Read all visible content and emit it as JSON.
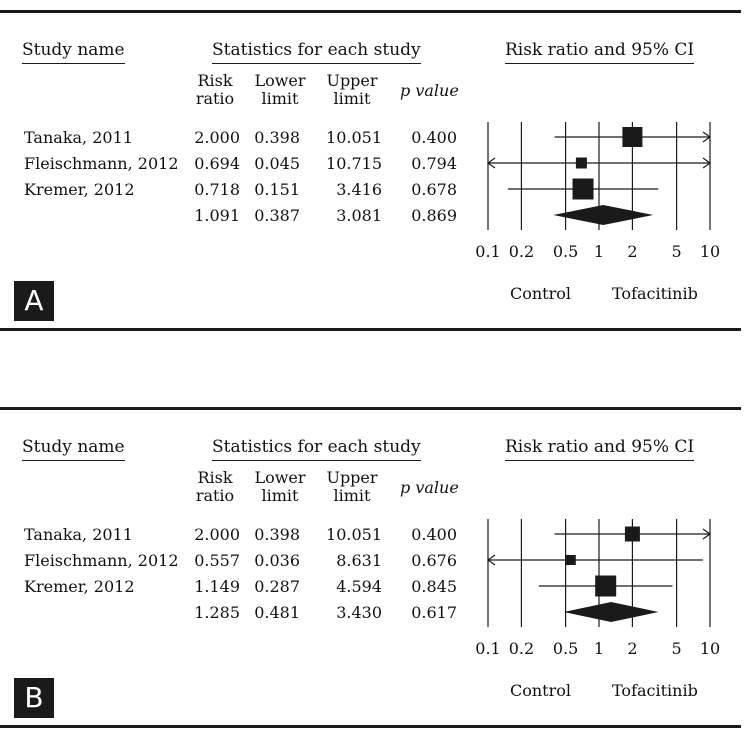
{
  "chart_data": [
    {
      "type": "forest",
      "panel_label": "A",
      "headers": {
        "study": "Study name",
        "statistics": "Statistics for each study",
        "plot": "Risk ratio and 95% CI",
        "col_risk_1": "Risk",
        "col_risk_2": "ratio",
        "col_lower_1": "Lower",
        "col_lower_2": "limit",
        "col_upper_1": "Upper",
        "col_upper_2": "limit",
        "col_p": "p value"
      },
      "rows": [
        {
          "study": "Tanaka, 2011",
          "rr": 2.0,
          "lower": 0.398,
          "upper": 10.051,
          "p": 0.4,
          "rr_text": "2.000",
          "lower_text": "0.398",
          "upper_text": "10.051",
          "p_text": "0.400",
          "weight": 1.0
        },
        {
          "study": "Fleischmann, 2012",
          "rr": 0.694,
          "lower": 0.045,
          "upper": 10.715,
          "p": 0.794,
          "rr_text": "0.694",
          "lower_text": "0.045",
          "upper_text": "10.715",
          "p_text": "0.794",
          "weight": 0.55
        },
        {
          "study": "Kremer, 2012",
          "rr": 0.718,
          "lower": 0.151,
          "upper": 3.416,
          "p": 0.678,
          "rr_text": "0.718",
          "lower_text": "0.151",
          "upper_text": "3.416",
          "p_text": "0.678",
          "weight": 1.05
        }
      ],
      "summary": {
        "rr": 1.091,
        "lower": 0.387,
        "upper": 3.081,
        "p": 0.869,
        "rr_text": "1.091",
        "lower_text": "0.387",
        "upper_text": "3.081",
        "p_text": "0.869"
      },
      "x_axis": {
        "scale": "log",
        "range": [
          0.1,
          10
        ],
        "ticks": [
          0.1,
          0.2,
          0.5,
          1,
          2,
          5,
          10
        ],
        "tick_labels": [
          "0.1",
          "0.2",
          "0.5",
          "1",
          "2",
          "5",
          "10"
        ]
      },
      "favours_left": "Control",
      "favours_right": "Tofacitinib"
    },
    {
      "type": "forest",
      "panel_label": "B",
      "headers": {
        "study": "Study name",
        "statistics": "Statistics for each study",
        "plot": "Risk ratio and 95% CI",
        "col_risk_1": "Risk",
        "col_risk_2": "ratio",
        "col_lower_1": "Lower",
        "col_lower_2": "limit",
        "col_upper_1": "Upper",
        "col_upper_2": "limit",
        "col_p": "p value"
      },
      "rows": [
        {
          "study": "Tanaka, 2011",
          "rr": 2.0,
          "lower": 0.398,
          "upper": 10.051,
          "p": 0.4,
          "rr_text": "2.000",
          "lower_text": "0.398",
          "upper_text": "10.051",
          "p_text": "0.400",
          "weight": 0.75
        },
        {
          "study": "Fleischmann, 2012",
          "rr": 0.557,
          "lower": 0.036,
          "upper": 8.631,
          "p": 0.676,
          "rr_text": "0.557",
          "lower_text": "0.036",
          "upper_text": "8.631",
          "p_text": "0.676",
          "weight": 0.5
        },
        {
          "study": "Kremer, 2012",
          "rr": 1.149,
          "lower": 0.287,
          "upper": 4.594,
          "p": 0.845,
          "rr_text": "1.149",
          "lower_text": "0.287",
          "upper_text": "4.594",
          "p_text": "0.845",
          "weight": 1.05
        }
      ],
      "summary": {
        "rr": 1.285,
        "lower": 0.481,
        "upper": 3.43,
        "p": 0.617,
        "rr_text": "1.285",
        "lower_text": "0.481",
        "upper_text": "3.430",
        "p_text": "0.617"
      },
      "x_axis": {
        "scale": "log",
        "range": [
          0.1,
          10
        ],
        "ticks": [
          0.1,
          0.2,
          0.5,
          1,
          2,
          5,
          10
        ],
        "tick_labels": [
          "0.1",
          "0.2",
          "0.5",
          "1",
          "2",
          "5",
          "10"
        ]
      },
      "favours_left": "Control",
      "favours_right": "Tofacitinib"
    }
  ]
}
